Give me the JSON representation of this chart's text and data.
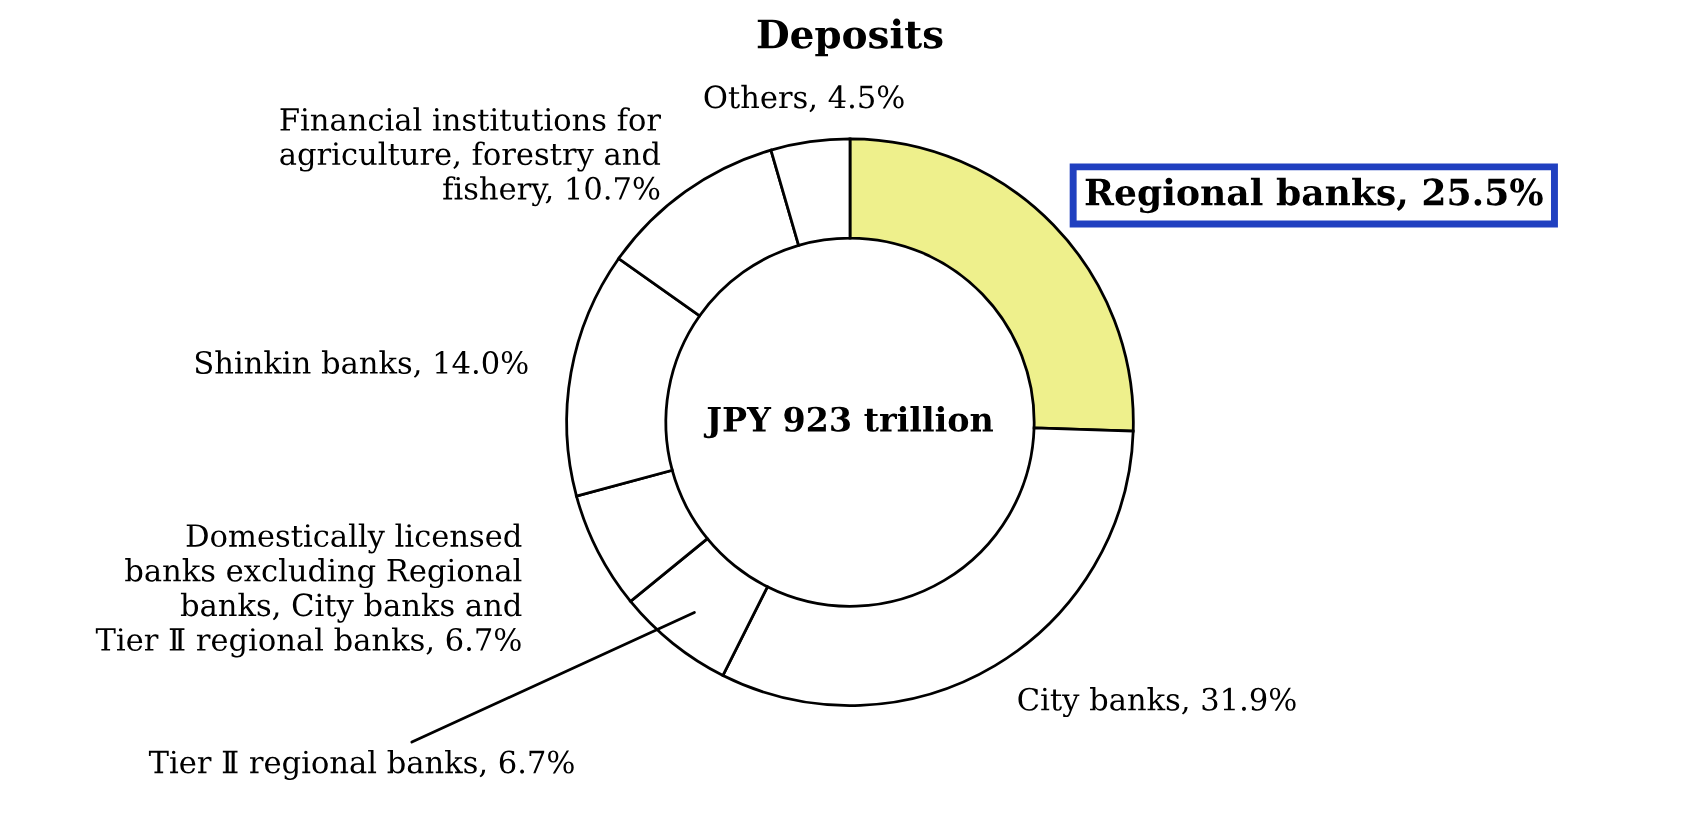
{
  "chart_data": {
    "type": "donut",
    "title": "Deposits",
    "categories": [
      "Regional banks",
      "City banks",
      "Tier Ⅱ regional banks",
      "Domestically licensed\nbanks excluding Regional\nbanks, City banks and\nTier Ⅱ regional banks",
      "Shinkin banks",
      "Financial institutions for\nagriculture, forestry and\nfishery",
      "Others"
    ],
    "values": [
      25.5,
      31.9,
      6.7,
      6.7,
      14.0,
      10.7,
      4.5
    ],
    "value_labels": [
      "25.5%",
      "31.9%",
      "6.7%",
      "6.7%",
      "14.0%",
      "10.7%",
      "4.5%"
    ],
    "colors": [
      "#eef08c",
      "#ffffff",
      "#ffffff",
      "#ffffff",
      "#ffffff",
      "#ffffff",
      "#ffffff"
    ],
    "annotations": [
      "JPY 923 trillion"
    ],
    "legend": false
  }
}
